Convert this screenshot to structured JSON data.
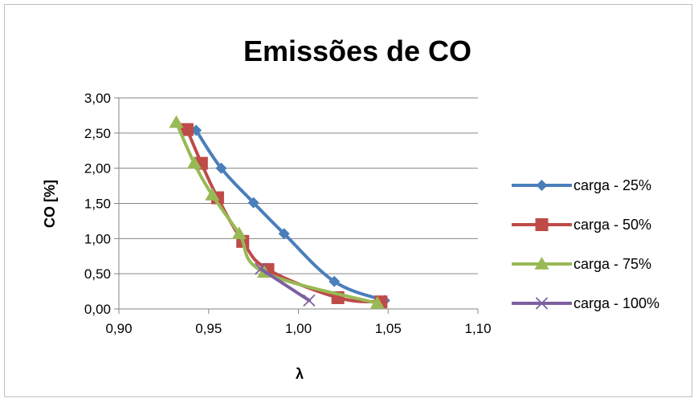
{
  "chart_data": {
    "type": "line",
    "title": "Emissões de CO",
    "xlabel": "λ",
    "ylabel": "CO [%]",
    "xlim": [
      0.9,
      1.1
    ],
    "ylim": [
      0.0,
      3.0
    ],
    "x_ticks": [
      "0,90",
      "0,95",
      "1,00",
      "1,05",
      "1,10"
    ],
    "y_ticks": [
      "0,00",
      "0,50",
      "1,00",
      "1,50",
      "2,00",
      "2,50",
      "3,00"
    ],
    "grid": "horizontal",
    "legend_position": "right",
    "series": [
      {
        "name": "carga - 25%",
        "color": "#4a7ebb",
        "marker": "diamond",
        "points": [
          [
            0.943,
            2.54
          ],
          [
            0.957,
            2.0
          ],
          [
            0.975,
            1.51
          ],
          [
            0.992,
            1.07
          ],
          [
            1.02,
            0.39
          ],
          [
            1.048,
            0.12
          ]
        ]
      },
      {
        "name": "carga - 50%",
        "color": "#be4b48",
        "marker": "square",
        "points": [
          [
            0.938,
            2.55
          ],
          [
            0.946,
            2.07
          ],
          [
            0.955,
            1.58
          ],
          [
            0.969,
            0.96
          ],
          [
            0.983,
            0.56
          ],
          [
            1.022,
            0.16
          ],
          [
            1.046,
            0.1
          ]
        ]
      },
      {
        "name": "carga - 75%",
        "color": "#98b954",
        "marker": "triangle",
        "points": [
          [
            0.932,
            2.65
          ],
          [
            0.942,
            2.07
          ],
          [
            0.952,
            1.62
          ],
          [
            0.967,
            1.07
          ],
          [
            0.981,
            0.52
          ],
          [
            1.044,
            0.08
          ]
        ]
      },
      {
        "name": "carga - 100%",
        "color": "#7d60a0",
        "marker": "x",
        "points": [
          [
            0.979,
            0.57
          ],
          [
            1.006,
            0.12
          ]
        ]
      }
    ]
  }
}
